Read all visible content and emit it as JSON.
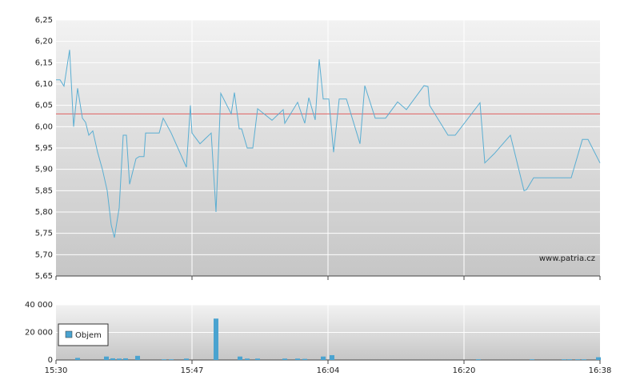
{
  "chart_data": [
    {
      "type": "line",
      "color": "#5aaed2",
      "reference_line": 6.03,
      "reference_color": "#e06060",
      "watermark": "www.patria.cz",
      "x": [
        0,
        0.5,
        1,
        1.7,
        2.2,
        2.7,
        3.3,
        3.7,
        4.1,
        4.6,
        5.2,
        5.8,
        6.4,
        6.9,
        7.3,
        7.9,
        8.4,
        8.8,
        9.2,
        10,
        10.4,
        11,
        11.2,
        12.9,
        13.4,
        14.4,
        16.3,
        16.8,
        17,
        18,
        19.4,
        20,
        20.6,
        21.9,
        22.3,
        22.9,
        23.2,
        23.9,
        24.6,
        25.2,
        27,
        28.4,
        28.6,
        30.2,
        31.1,
        31.6,
        32.4,
        32.9,
        33.4,
        34.1,
        34.7,
        35.4,
        36.3,
        38,
        38.6,
        39.9,
        41.2,
        42.7,
        43.8,
        46,
        46.5,
        46.7,
        49,
        49.9,
        53,
        53.6,
        54.8,
        56.8,
        58.5,
        58.8,
        59.7,
        64.4,
        65.8,
        66.5,
        68
      ],
      "values": [
        6.11,
        6.11,
        6.095,
        6.18,
        6.0,
        6.09,
        6.02,
        6.01,
        5.98,
        5.99,
        5.94,
        5.9,
        5.85,
        5.77,
        5.74,
        5.81,
        5.98,
        5.98,
        5.865,
        5.925,
        5.93,
        5.93,
        5.985,
        5.985,
        6.02,
        5.985,
        5.905,
        6.05,
        5.985,
        5.96,
        5.985,
        5.8,
        6.078,
        6.03,
        6.08,
        5.995,
        5.995,
        5.95,
        5.95,
        6.042,
        6.015,
        6.04,
        6.008,
        6.057,
        6.008,
        6.068,
        6.016,
        6.158,
        6.065,
        6.065,
        5.94,
        6.065,
        6.065,
        5.96,
        6.096,
        6.02,
        6.02,
        6.058,
        6.04,
        6.096,
        6.094,
        6.05,
        5.98,
        5.98,
        6.056,
        5.915,
        5.937,
        5.98,
        5.85,
        5.852,
        5.88,
        5.88,
        5.97,
        5.97,
        5.915
      ],
      "xlim": [
        0,
        68
      ],
      "ylim": [
        5.65,
        6.25
      ],
      "yticks": [
        {
          "value": 5.65,
          "label": "5,65"
        },
        {
          "value": 5.7,
          "label": "5,70"
        },
        {
          "value": 5.75,
          "label": "5,75"
        },
        {
          "value": 5.8,
          "label": "5,80"
        },
        {
          "value": 5.85,
          "label": "5,85"
        },
        {
          "value": 5.9,
          "label": "5,90"
        },
        {
          "value": 5.95,
          "label": "5,95"
        },
        {
          "value": 6.0,
          "label": "6,00"
        },
        {
          "value": 6.05,
          "label": "6,05"
        },
        {
          "value": 6.1,
          "label": "6,10"
        },
        {
          "value": 6.15,
          "label": "6,15"
        },
        {
          "value": 6.2,
          "label": "6,20"
        },
        {
          "value": 6.25,
          "label": "6,25"
        }
      ],
      "grid": true
    },
    {
      "type": "bar",
      "x": [
        2.7,
        6.3,
        7.1,
        7.9,
        8.7,
        10.2,
        13.5,
        14.4,
        16.3,
        20,
        23,
        23.9,
        25.2,
        28.6,
        30.2,
        31.1,
        33.4,
        34.5,
        52.8,
        59.5,
        63.5,
        64.2,
        65.2,
        66,
        67.8
      ],
      "series": [
        {
          "name": "Objem",
          "color": "#4aa3d0",
          "values": [
            1500,
            2500,
            1200,
            1000,
            1200,
            3000,
            500,
            500,
            1000,
            30000,
            2500,
            1000,
            1000,
            1000,
            1000,
            800,
            2500,
            3500,
            500,
            500,
            500,
            500,
            500,
            500,
            2000
          ]
        }
      ],
      "xlim": [
        0,
        68
      ],
      "ylim": [
        0,
        40000
      ],
      "xticks": [
        {
          "value": 0,
          "label": "15:30"
        },
        {
          "value": 17,
          "label": "15:47"
        },
        {
          "value": 34,
          "label": "16:04"
        },
        {
          "value": 51,
          "label": "16:20"
        },
        {
          "value": 68,
          "label": "16:38"
        }
      ],
      "yticks": [
        0,
        {
          "value": 20000,
          "label": "20 000"
        },
        {
          "value": 40000,
          "label": "40 000"
        }
      ],
      "grid": true
    }
  ]
}
